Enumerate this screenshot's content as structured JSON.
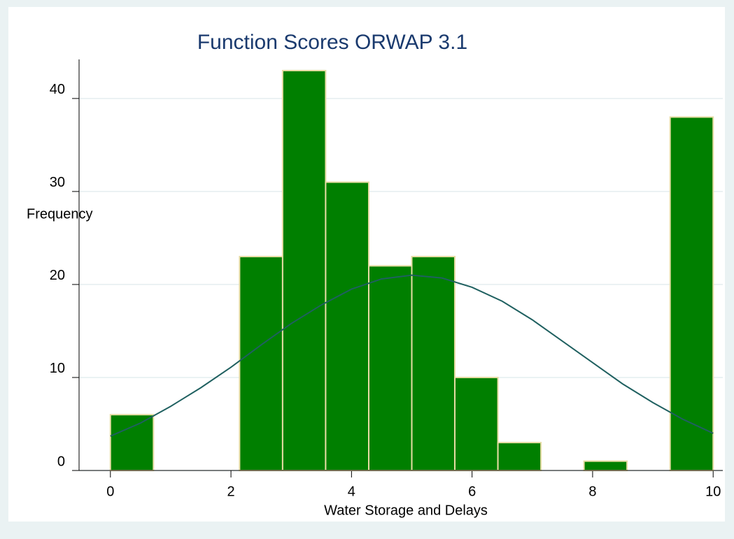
{
  "chart_data": {
    "type": "histogram",
    "title": "Function Scores   ORWAP 3.1",
    "xlabel": "Water Storage and Delays",
    "ylabel": "Frequency",
    "bins": [
      0,
      0.714,
      1.429,
      2.143,
      2.857,
      3.571,
      4.286,
      5,
      5.714,
      6.429,
      7.143,
      7.857,
      8.571,
      9.286,
      10
    ],
    "values": [
      6,
      0,
      0,
      23,
      43,
      31,
      22,
      23,
      10,
      3,
      0,
      1,
      0,
      38
    ],
    "color": "#007f00",
    "edge_color": "#e6dca4",
    "curve": {
      "color": "#1f6060",
      "x": [
        0,
        0.5,
        1,
        1.5,
        2,
        2.5,
        3,
        3.5,
        4,
        4.5,
        5,
        5.5,
        6,
        6.5,
        7,
        7.5,
        8,
        8.5,
        9,
        9.5,
        10
      ],
      "values": [
        3.7,
        5.1,
        6.9,
        8.9,
        11.1,
        13.5,
        15.8,
        17.8,
        19.5,
        20.6,
        21.0,
        20.7,
        19.7,
        18.2,
        16.2,
        13.9,
        11.6,
        9.3,
        7.3,
        5.5,
        4.0
      ]
    },
    "xlim": [
      -0.52,
      10.16
    ],
    "ylim": [
      0,
      44.2
    ],
    "xticks": [
      0,
      2,
      4,
      6,
      8,
      10
    ],
    "yticks": [
      0,
      10,
      20,
      30,
      40
    ],
    "grid": true
  }
}
